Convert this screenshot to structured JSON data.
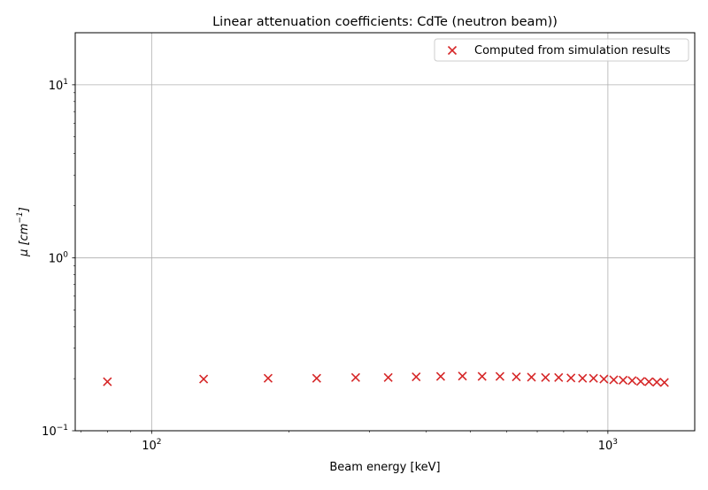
{
  "chart_data": {
    "type": "scatter",
    "title": "Linear attenuation coefficients: CdTe (neutron beam))",
    "xlabel": "Beam energy [keV]",
    "ylabel_main": "μ [cm",
    "ylabel_sup": "−1",
    "ylabel_close": "]",
    "x_scale": "log",
    "y_scale": "log",
    "xlim": [
      68,
      1550
    ],
    "ylim": [
      0.1,
      20
    ],
    "grid": true,
    "legend_position": "top-right",
    "x_ticks": [
      {
        "value": 100,
        "base": "10",
        "exp": "2"
      },
      {
        "value": 1000,
        "base": "10",
        "exp": "3"
      }
    ],
    "y_ticks": [
      {
        "value": 0.1,
        "base": "10",
        "exp": "−1"
      },
      {
        "value": 1,
        "base": "10",
        "exp": "0"
      },
      {
        "value": 10,
        "base": "10",
        "exp": "1"
      }
    ],
    "series": [
      {
        "name": "Computed from simulation results",
        "color": "#d62728",
        "marker": "x",
        "x": [
          80,
          130,
          180,
          230,
          280,
          330,
          380,
          430,
          480,
          530,
          580,
          630,
          680,
          730,
          780,
          830,
          880,
          930,
          980,
          1030,
          1080,
          1130,
          1180,
          1230,
          1280,
          1330
        ],
        "y": [
          0.192,
          0.199,
          0.201,
          0.201,
          0.203,
          0.203,
          0.205,
          0.206,
          0.207,
          0.206,
          0.206,
          0.205,
          0.204,
          0.203,
          0.203,
          0.202,
          0.201,
          0.201,
          0.199,
          0.197,
          0.196,
          0.195,
          0.193,
          0.192,
          0.191,
          0.19
        ]
      }
    ]
  }
}
